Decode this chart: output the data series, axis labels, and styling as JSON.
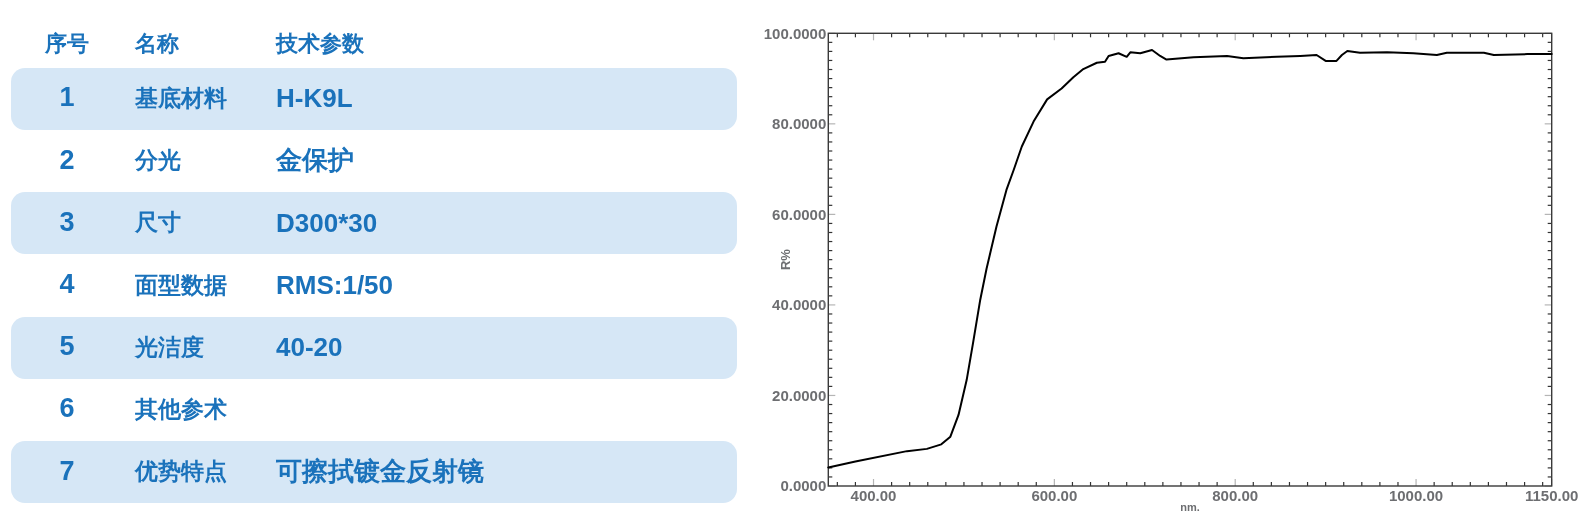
{
  "chart_data": [
    {
      "type": "heatmap",
      "ylabel": "序号",
      "categories": [
        "名称",
        "技术参数"
      ],
      "y_categories": [
        "1",
        "2",
        "3",
        "4",
        "5",
        "6",
        "7"
      ],
      "cells": [
        [
          null,
          null
        ],
        [
          null,
          null
        ],
        [
          null,
          null
        ],
        [
          null,
          null
        ],
        [
          null,
          null
        ],
        [
          null,
          null
        ],
        [
          null,
          null
        ]
      ],
      "cell_labels": [
        [
          "基底材料",
          "H-K9L"
        ],
        [
          "分光",
          "金保护"
        ],
        [
          "尺寸",
          "D300*30"
        ],
        [
          "面型数据",
          "RMS:1/50"
        ],
        [
          "光洁度",
          "40-20"
        ],
        [
          "其他参术",
          null
        ],
        [
          "优势特点",
          "可擦拭镀金反射镜"
        ]
      ]
    },
    {
      "type": "line",
      "xlabel": "nm.",
      "ylabel": "R%",
      "color": "#000000",
      "x": [
        350,
        380,
        437,
        459,
        475,
        485,
        494,
        503,
        510,
        518,
        525,
        536,
        547,
        555,
        564,
        577,
        592,
        608,
        621,
        632,
        647,
        656,
        660,
        671,
        680,
        684,
        695,
        708,
        717,
        724,
        754,
        791,
        809,
        846,
        872,
        890,
        900,
        912,
        918,
        924,
        938,
        968,
        997,
        1023,
        1034,
        1075,
        1086,
        1123,
        1150
      ],
      "values": [
        4.1,
        5.4,
        7.7,
        8.2,
        9.2,
        10.9,
        15.7,
        23.4,
        31.5,
        41.1,
        48.0,
        57.3,
        65.4,
        69.8,
        75.0,
        80.5,
        85.4,
        87.8,
        90.3,
        92.1,
        93.5,
        93.7,
        95.0,
        95.6,
        94.8,
        95.8,
        95.6,
        96.3,
        95.0,
        94.2,
        94.7,
        95.0,
        94.5,
        94.8,
        95.0,
        95.2,
        93.9,
        93.9,
        95.2,
        96.1,
        95.7,
        95.8,
        95.6,
        95.2,
        95.7,
        95.7,
        95.2,
        95.4,
        95.4
      ],
      "xlim": [
        350,
        1150
      ],
      "ylim": [
        0,
        100
      ],
      "xticks": [
        {
          "value": 360,
          "label": null
        },
        {
          "value": 380,
          "label": null
        },
        {
          "value": 400,
          "label": "400.00"
        },
        {
          "value": 420,
          "label": null
        },
        {
          "value": 440,
          "label": null
        },
        {
          "value": 460,
          "label": null
        },
        {
          "value": 480,
          "label": null
        },
        {
          "value": 500,
          "label": null
        },
        {
          "value": 520,
          "label": null
        },
        {
          "value": 540,
          "label": null
        },
        {
          "value": 560,
          "label": null
        },
        {
          "value": 580,
          "label": null
        },
        {
          "value": 600,
          "label": "600.00"
        },
        {
          "value": 620,
          "label": null
        },
        {
          "value": 640,
          "label": null
        },
        {
          "value": 660,
          "label": null
        },
        {
          "value": 680,
          "label": null
        },
        {
          "value": 700,
          "label": null
        },
        {
          "value": 720,
          "label": null
        },
        {
          "value": 740,
          "label": null
        },
        {
          "value": 760,
          "label": null
        },
        {
          "value": 780,
          "label": null
        },
        {
          "value": 800,
          "label": "800.00"
        },
        {
          "value": 820,
          "label": null
        },
        {
          "value": 840,
          "label": null
        },
        {
          "value": 860,
          "label": null
        },
        {
          "value": 880,
          "label": null
        },
        {
          "value": 900,
          "label": null
        },
        {
          "value": 920,
          "label": null
        },
        {
          "value": 940,
          "label": null
        },
        {
          "value": 960,
          "label": null
        },
        {
          "value": 980,
          "label": null
        },
        {
          "value": 1000,
          "label": "1000.00"
        },
        {
          "value": 1020,
          "label": null
        },
        {
          "value": 1040,
          "label": null
        },
        {
          "value": 1060,
          "label": null
        },
        {
          "value": 1080,
          "label": null
        },
        {
          "value": 1100,
          "label": null
        },
        {
          "value": 1120,
          "label": null
        },
        {
          "value": 1140,
          "label": null
        },
        {
          "value": 1150,
          "label": "1150.00"
        }
      ],
      "yticks": [
        {
          "value": 0,
          "label": "0.0000"
        },
        {
          "value": 2,
          "label": null
        },
        {
          "value": 4,
          "label": null
        },
        {
          "value": 6,
          "label": null
        },
        {
          "value": 8,
          "label": null
        },
        {
          "value": 10,
          "label": null
        },
        {
          "value": 12,
          "label": null
        },
        {
          "value": 14,
          "label": null
        },
        {
          "value": 16,
          "label": null
        },
        {
          "value": 18,
          "label": null
        },
        {
          "value": 20,
          "label": "20.0000"
        },
        {
          "value": 22,
          "label": null
        },
        {
          "value": 24,
          "label": null
        },
        {
          "value": 26,
          "label": null
        },
        {
          "value": 28,
          "label": null
        },
        {
          "value": 30,
          "label": null
        },
        {
          "value": 32,
          "label": null
        },
        {
          "value": 34,
          "label": null
        },
        {
          "value": 36,
          "label": null
        },
        {
          "value": 38,
          "label": null
        },
        {
          "value": 40,
          "label": "40.0000"
        },
        {
          "value": 42,
          "label": null
        },
        {
          "value": 44,
          "label": null
        },
        {
          "value": 46,
          "label": null
        },
        {
          "value": 48,
          "label": null
        },
        {
          "value": 50,
          "label": null
        },
        {
          "value": 52,
          "label": null
        },
        {
          "value": 54,
          "label": null
        },
        {
          "value": 56,
          "label": null
        },
        {
          "value": 58,
          "label": null
        },
        {
          "value": 60,
          "label": "60.0000"
        },
        {
          "value": 62,
          "label": null
        },
        {
          "value": 64,
          "label": null
        },
        {
          "value": 66,
          "label": null
        },
        {
          "value": 68,
          "label": null
        },
        {
          "value": 70,
          "label": null
        },
        {
          "value": 72,
          "label": null
        },
        {
          "value": 74,
          "label": null
        },
        {
          "value": 76,
          "label": null
        },
        {
          "value": 78,
          "label": null
        },
        {
          "value": 80,
          "label": "80.0000"
        },
        {
          "value": 82,
          "label": null
        },
        {
          "value": 84,
          "label": null
        },
        {
          "value": 86,
          "label": null
        },
        {
          "value": 88,
          "label": null
        },
        {
          "value": 90,
          "label": null
        },
        {
          "value": 92,
          "label": null
        },
        {
          "value": 94,
          "label": null
        },
        {
          "value": 96,
          "label": null
        },
        {
          "value": 98,
          "label": null
        },
        {
          "value": 100,
          "label": "100.0000"
        }
      ]
    }
  ]
}
